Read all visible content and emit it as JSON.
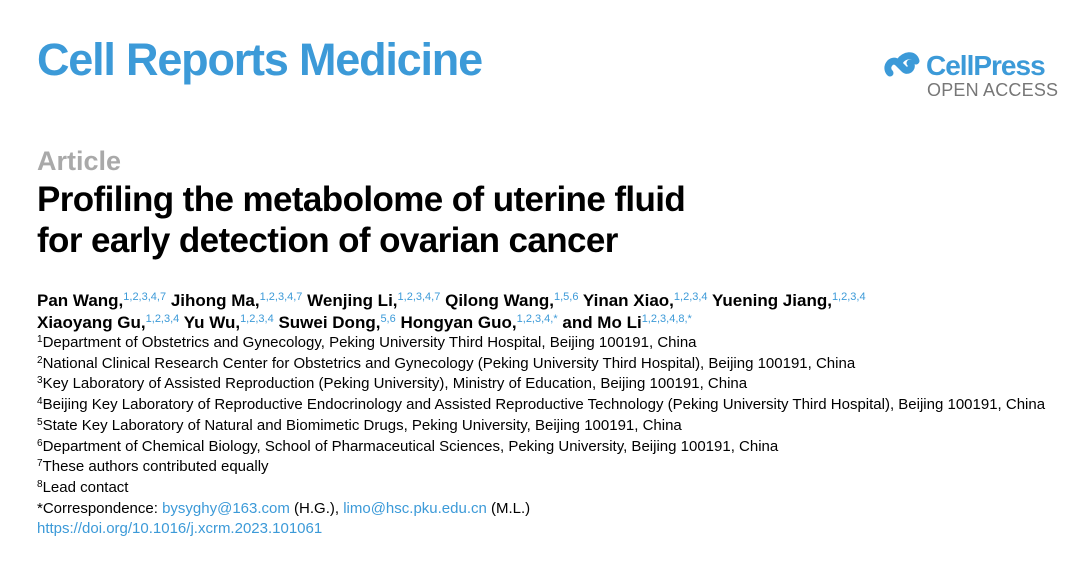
{
  "journal": "Cell Reports Medicine",
  "publisher": {
    "name": "CellPress",
    "access": "OPEN ACCESS"
  },
  "article_type": "Article",
  "title_lines": [
    "Profiling the metabolome of uterine fluid",
    "for early detection of ovarian cancer"
  ],
  "authors": [
    {
      "name": "Pan Wang,",
      "sup": "1,2,3,4,7"
    },
    {
      "name": "Jihong Ma,",
      "sup": "1,2,3,4,7"
    },
    {
      "name": "Wenjing Li,",
      "sup": "1,2,3,4,7"
    },
    {
      "name": "Qilong Wang,",
      "sup": "1,5,6"
    },
    {
      "name": "Yinan Xiao,",
      "sup": "1,2,3,4"
    },
    {
      "name": "Yuening Jiang,",
      "sup": "1,2,3,4"
    },
    {
      "name": "Xiaoyang Gu,",
      "sup": "1,2,3,4"
    },
    {
      "name": "Yu Wu,",
      "sup": "1,2,3,4"
    },
    {
      "name": "Suwei Dong,",
      "sup": "5,6"
    },
    {
      "name": "Hongyan Guo,",
      "sup": "1,2,3,4,*"
    },
    {
      "name": "and Mo Li",
      "sup": "1,2,3,4,8,*"
    }
  ],
  "affiliations": [
    {
      "n": "1",
      "text": "Department of Obstetrics and Gynecology, Peking University Third Hospital, Beijing 100191, China"
    },
    {
      "n": "2",
      "text": "National Clinical Research Center for Obstetrics and Gynecology (Peking University Third Hospital), Beijing 100191, China"
    },
    {
      "n": "3",
      "text": "Key Laboratory of Assisted Reproduction (Peking University), Ministry of Education, Beijing 100191, China"
    },
    {
      "n": "4",
      "text": "Beijing Key Laboratory of Reproductive Endocrinology and Assisted Reproductive Technology (Peking University Third Hospital), Beijing 100191, China"
    },
    {
      "n": "5",
      "text": "State Key Laboratory of Natural and Biomimetic Drugs, Peking University, Beijing 100191, China"
    },
    {
      "n": "6",
      "text": "Department of Chemical Biology, School of Pharmaceutical Sciences, Peking University, Beijing 100191, China"
    },
    {
      "n": "7",
      "text": "These authors contributed equally"
    },
    {
      "n": "8",
      "text": "Lead contact"
    }
  ],
  "correspondence": {
    "label": "*Correspondence: ",
    "email1": "bysyghy@163.com",
    "who1": " (H.G.), ",
    "email2": "limo@hsc.pku.edu.cn",
    "who2": " (M.L.)"
  },
  "doi": "https://doi.org/10.1016/j.xcrm.2023.101061",
  "colors": {
    "brand": "#3c9ad8",
    "article_label": "#a9a9a9"
  }
}
